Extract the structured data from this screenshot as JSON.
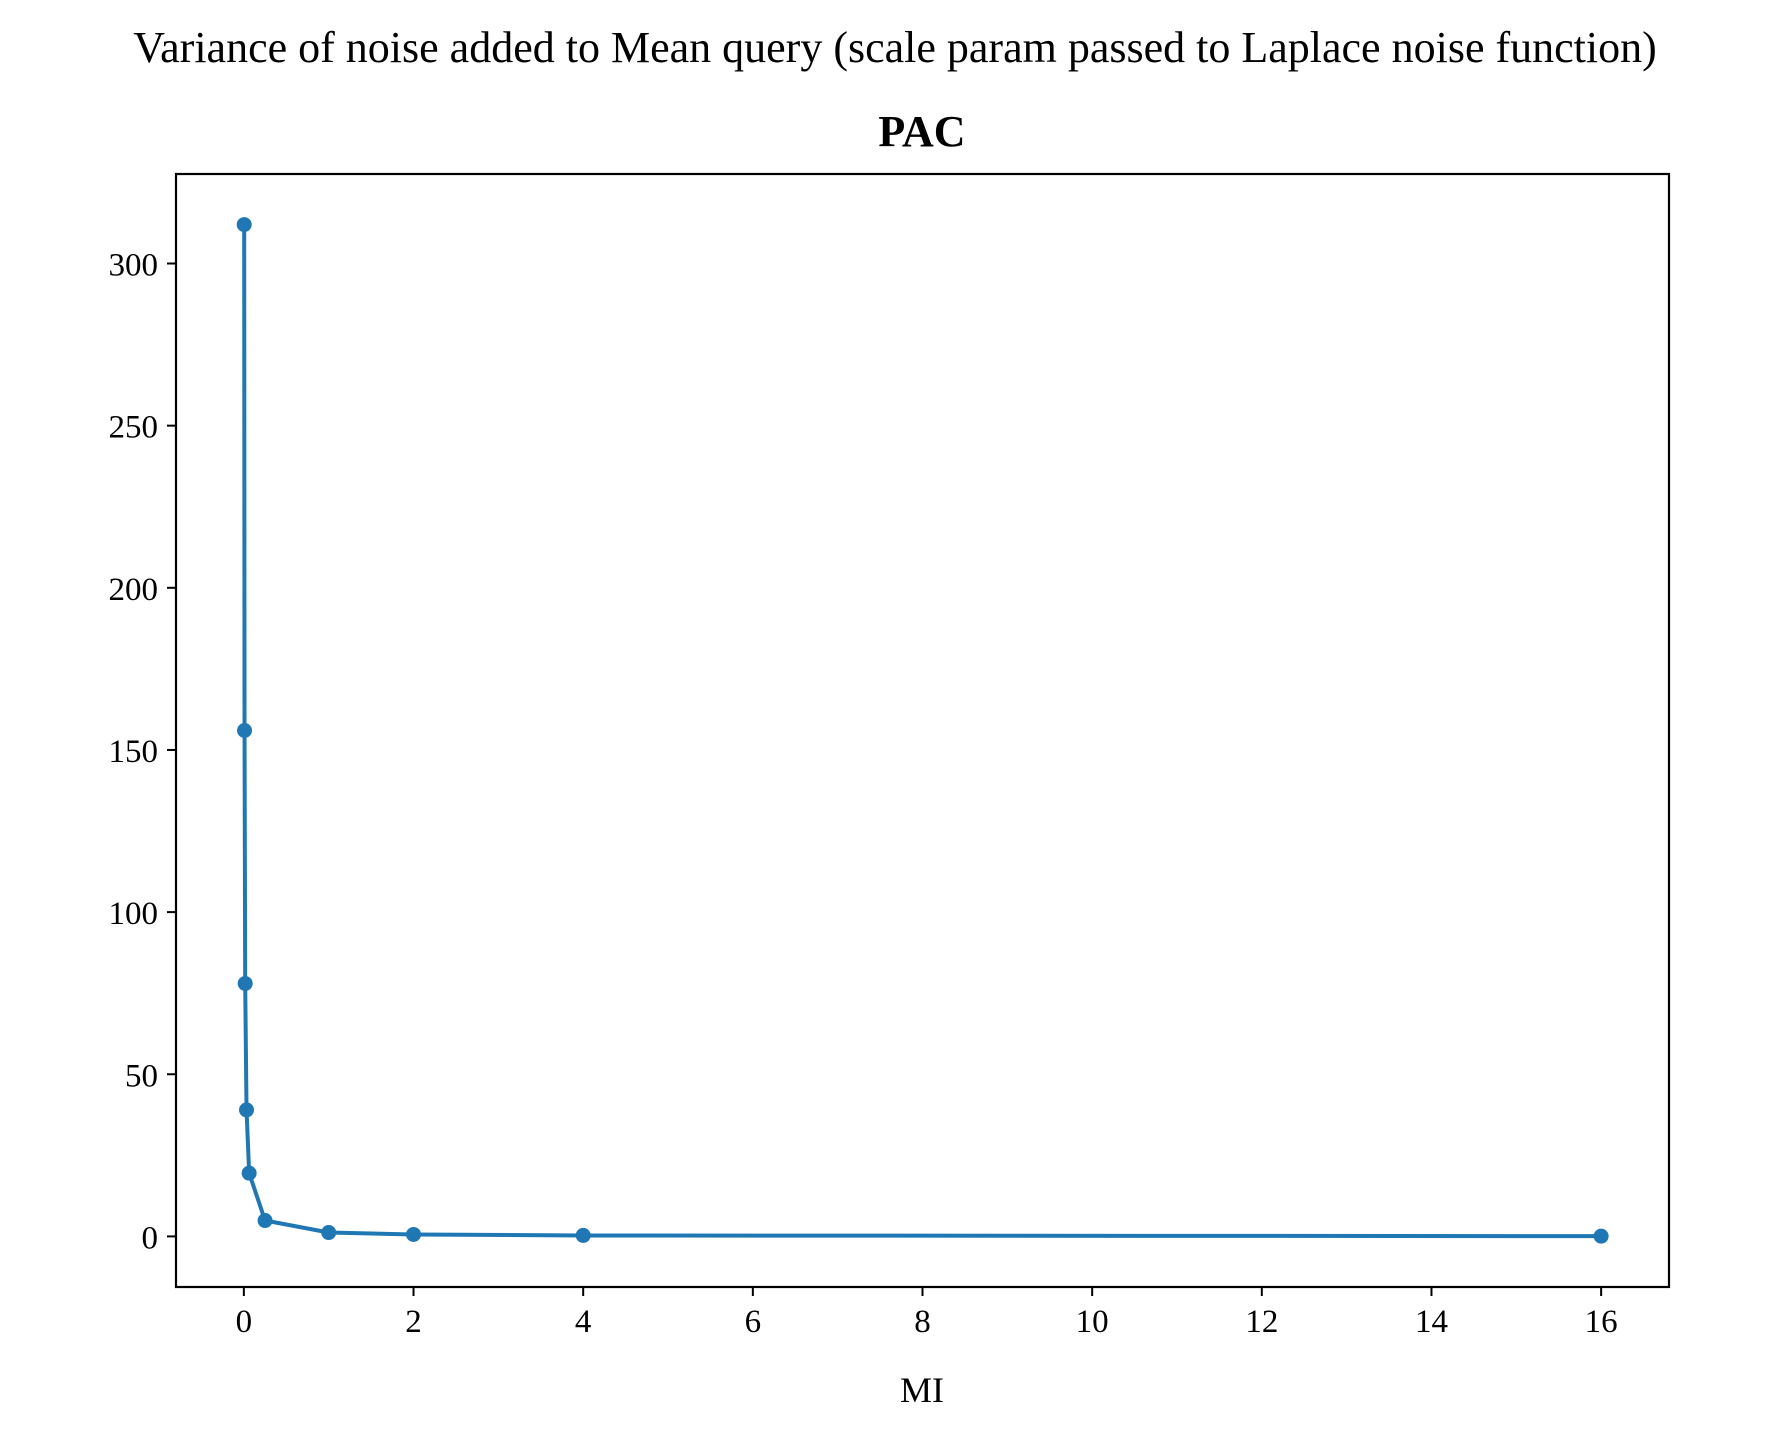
{
  "figure": {
    "suptitle": "Variance of noise added to Mean query (scale param passed to Laplace noise function)"
  },
  "chart_data": {
    "type": "line",
    "title": "PAC",
    "xlabel": "MI",
    "ylabel": "",
    "xlim": [
      -0.8,
      16.8
    ],
    "ylim": [
      -15.6,
      327.6
    ],
    "xticks": [
      0,
      2,
      4,
      6,
      8,
      10,
      12,
      14,
      16
    ],
    "xtick_labels": [
      "0",
      "2",
      "4",
      "6",
      "8",
      "10",
      "12",
      "14",
      "16"
    ],
    "yticks": [
      0,
      50,
      100,
      150,
      200,
      250,
      300
    ],
    "ytick_labels": [
      "0",
      "50",
      "100",
      "150",
      "200",
      "250",
      "300"
    ],
    "grid": false,
    "legend": "none",
    "series": [
      {
        "color": "#1f77b4",
        "marker": "circle",
        "x": [
          0.0039,
          0.0078,
          0.0156,
          0.0313,
          0.0625,
          0.25,
          1,
          2,
          4,
          16
        ],
        "y": [
          312,
          156,
          78,
          39,
          19.5,
          4.9,
          1.2,
          0.6,
          0.3,
          0.08
        ]
      }
    ]
  }
}
